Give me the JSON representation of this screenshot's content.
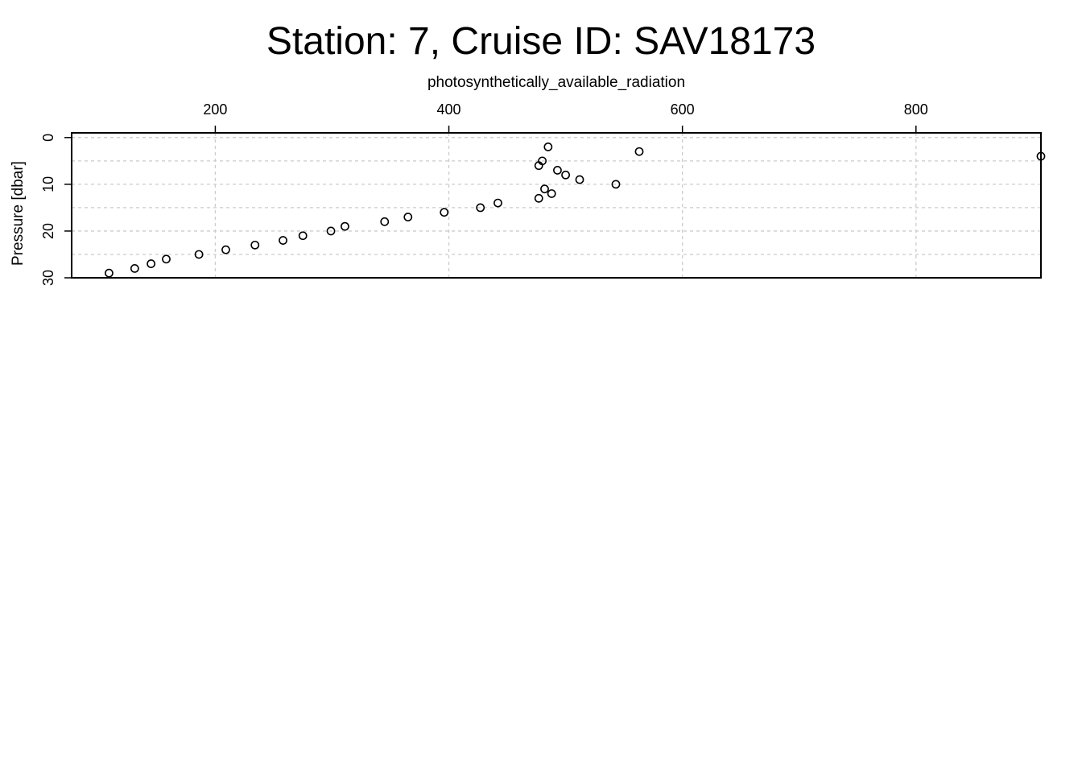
{
  "chart_data": {
    "type": "scatter",
    "title": "Station: 7, Cruise ID: SAV18173",
    "xlabel": "photosynthetically_available_radiation",
    "ylabel": "Pressure [dbar]",
    "x_axis_position": "top",
    "y_axis_inverted": true,
    "xlim": [
      77,
      907
    ],
    "ylim": [
      30,
      -1
    ],
    "x_ticks": [
      200,
      400,
      600,
      800
    ],
    "x_tick_labels": [
      "200",
      "400",
      "600",
      "800"
    ],
    "y_ticks": [
      0,
      10,
      20,
      30
    ],
    "y_tick_labels": [
      "0",
      "10",
      "20",
      "30"
    ],
    "grid": true,
    "marker": "open-circle",
    "colors": {
      "points": "#000000",
      "grid": "#cccccc",
      "frame": "#000000"
    },
    "series": [
      {
        "x": [
          485,
          563,
          907,
          480,
          477,
          493,
          500,
          512,
          543,
          482,
          488,
          477,
          442,
          427,
          396,
          365,
          345,
          311,
          299,
          275,
          258,
          234,
          209,
          186,
          158,
          145,
          131,
          109
        ],
        "y": [
          2,
          3,
          4,
          5,
          6,
          7,
          8,
          9,
          10,
          11,
          12,
          13,
          14,
          15,
          16,
          17,
          18,
          19,
          20,
          21,
          22,
          23,
          24,
          25,
          26,
          27,
          28,
          29
        ]
      }
    ]
  }
}
